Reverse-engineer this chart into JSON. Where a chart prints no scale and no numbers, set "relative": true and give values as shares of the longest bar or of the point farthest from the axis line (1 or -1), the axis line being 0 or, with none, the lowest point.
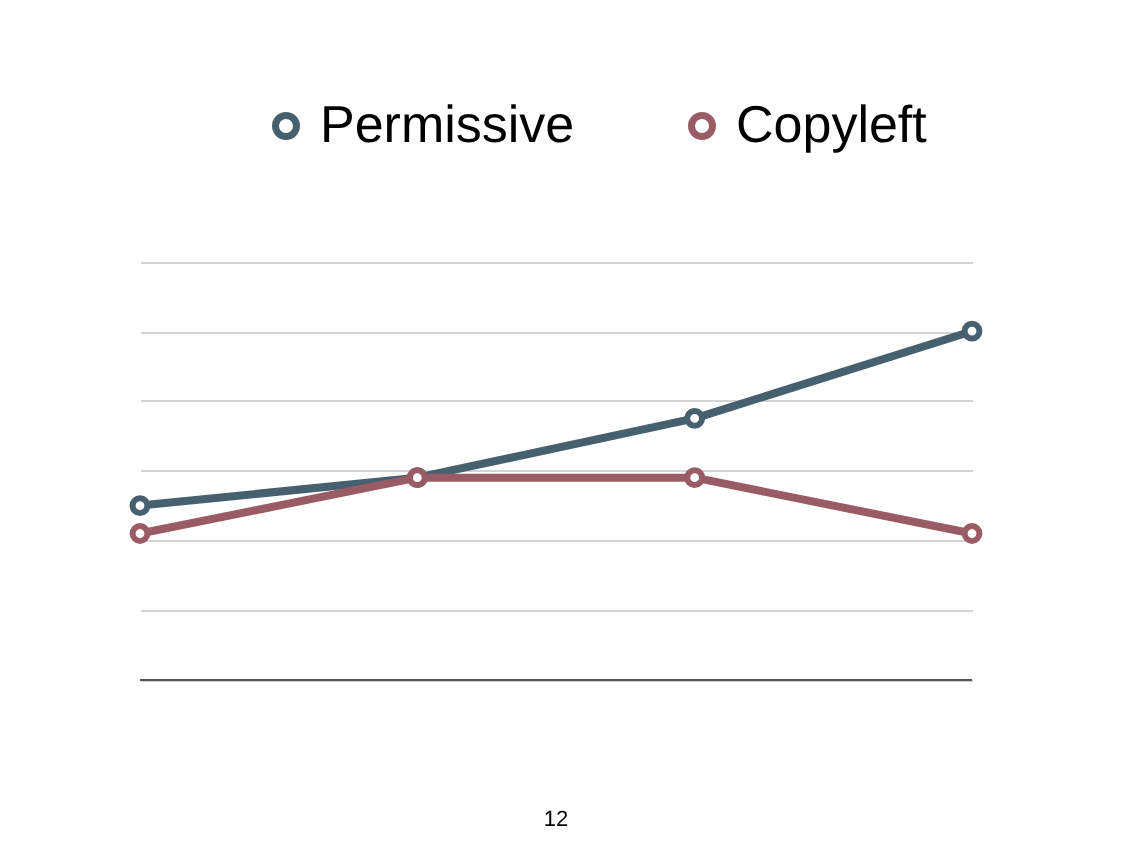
{
  "chart_data": {
    "type": "line",
    "relative": true,
    "categories": [
      null,
      null,
      null,
      null
    ],
    "series": [
      {
        "name": "Permissive",
        "color": "#46606f",
        "values": [
          0.5,
          0.58,
          0.75,
          1
        ]
      },
      {
        "name": "Copyleft",
        "color": "#9a5c64",
        "values": [
          0.42,
          0.58,
          0.58,
          0.42
        ]
      }
    ],
    "grid": "y",
    "legend": "top",
    "marker": "circle",
    "line_style": "solid",
    "annotations": [
      "12"
    ]
  }
}
